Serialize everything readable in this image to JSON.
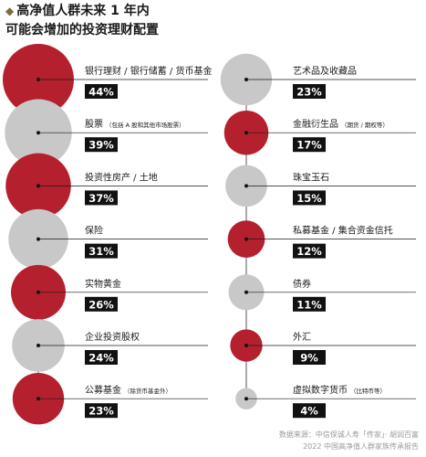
{
  "header": {
    "title": "高净值人群未来 1 年内",
    "subtitle": "可能会增加的投资理财配置"
  },
  "footer": {
    "source_line1": "数据来源：中信保诚人寿「传家」· 胡润百富",
    "source_line2": "2022 中国高净值人群家族传承报告"
  },
  "colors": {
    "highlight": "#b5202e",
    "muted": "#c8c8c8",
    "label_bg": "#111111",
    "label_text": "#ffffff",
    "diamond": "#7a6a3c"
  },
  "chart_data": {
    "type": "bubble",
    "unit": "%",
    "series": [
      {
        "name": "银行理财 / 银行储蓄 / 货币基金",
        "note": "",
        "value": 44,
        "highlight": true
      },
      {
        "name": "股票",
        "note": "（包括 A 股和其他市场股票）",
        "value": 39,
        "highlight": false
      },
      {
        "name": "投资性房产 / 土地",
        "note": "",
        "value": 37,
        "highlight": true
      },
      {
        "name": "保险",
        "note": "",
        "value": 31,
        "highlight": false
      },
      {
        "name": "实物黄金",
        "note": "",
        "value": 26,
        "highlight": true
      },
      {
        "name": "企业投资股权",
        "note": "",
        "value": 24,
        "highlight": false
      },
      {
        "name": "公募基金",
        "note": "（除货币基金外）",
        "value": 23,
        "highlight": true
      },
      {
        "name": "艺术品及收藏品",
        "note": "",
        "value": 23,
        "highlight": false
      },
      {
        "name": "金融衍生品",
        "note": "（期货 / 期权等）",
        "value": 17,
        "highlight": true
      },
      {
        "name": "珠宝玉石",
        "note": "",
        "value": 15,
        "highlight": false
      },
      {
        "name": "私募基金 / 集合资金信托",
        "note": "",
        "value": 12,
        "highlight": true
      },
      {
        "name": "债券",
        "note": "",
        "value": 11,
        "highlight": false
      },
      {
        "name": "外汇",
        "note": "",
        "value": 9,
        "highlight": true
      },
      {
        "name": "虚拟数字货币",
        "note": "（比特币等）",
        "value": 4,
        "highlight": false
      }
    ]
  }
}
